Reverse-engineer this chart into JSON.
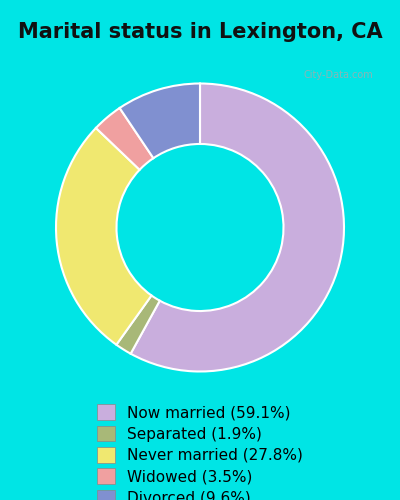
{
  "title": "Marital status in Lexington, CA",
  "slices": [
    59.1,
    1.9,
    27.8,
    3.5,
    9.6
  ],
  "labels": [
    "Now married (59.1%)",
    "Separated (1.9%)",
    "Never married (27.8%)",
    "Widowed (3.5%)",
    "Divorced (9.6%)"
  ],
  "colors": [
    "#c9aedd",
    "#a8b878",
    "#f0e870",
    "#f0a0a0",
    "#8090d0"
  ],
  "bg_outer": "#00e5e5",
  "bg_inner": "#d8eed8",
  "donut_hole": 0.58,
  "title_fontsize": 15,
  "legend_fontsize": 11,
  "start_angle": 90,
  "figsize": [
    4.0,
    5.0
  ],
  "dpi": 100
}
